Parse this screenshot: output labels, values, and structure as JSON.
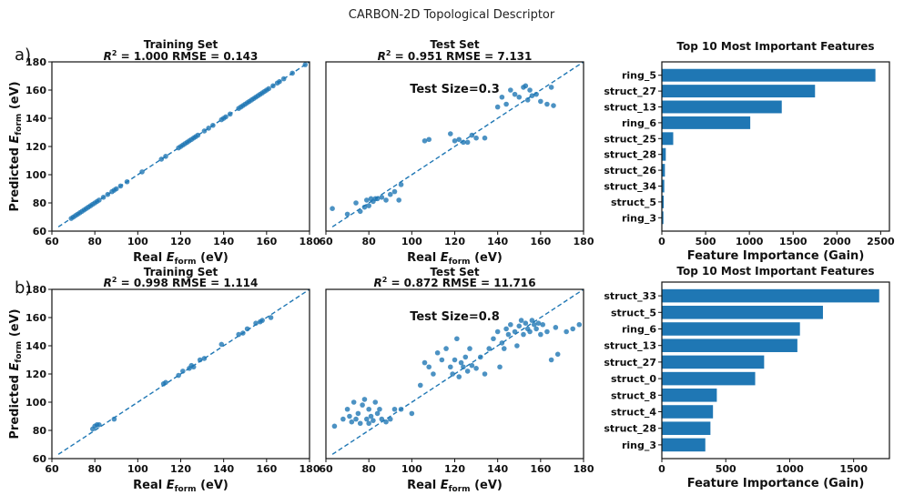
{
  "figure": {
    "title": "CARBON-2D Topological Descriptor",
    "row_labels": [
      "a)",
      "b)"
    ],
    "colors": {
      "marker": "#1f77b4",
      "bar": "#1f77b4",
      "axis": "#111111"
    }
  },
  "chart_data": [
    {
      "type": "scatter",
      "title": "Training Set",
      "r2": "1.000",
      "rmse": "0.143",
      "annotation": "",
      "xlabel_main": "Real ",
      "ylabel_main": "Predicted ",
      "symbol": "E",
      "subscript": "form",
      "unit": " (eV)",
      "xlim": [
        60,
        180
      ],
      "ylim": [
        60,
        180
      ],
      "xticks": [
        60,
        80,
        100,
        120,
        140,
        160,
        180
      ],
      "yticks": [
        60,
        80,
        100,
        120,
        140,
        160,
        180
      ],
      "ideal_line": [
        [
          63,
          63
        ],
        [
          180,
          180
        ]
      ],
      "points": [
        [
          69,
          69
        ],
        [
          70,
          70
        ],
        [
          71,
          71
        ],
        [
          72,
          72
        ],
        [
          73,
          73
        ],
        [
          74,
          74
        ],
        [
          75,
          75
        ],
        [
          76,
          76
        ],
        [
          77,
          77
        ],
        [
          78,
          78
        ],
        [
          79,
          79
        ],
        [
          80,
          80
        ],
        [
          81,
          81
        ],
        [
          82,
          82
        ],
        [
          84,
          84
        ],
        [
          86,
          86
        ],
        [
          88,
          88
        ],
        [
          89,
          89
        ],
        [
          90,
          90
        ],
        [
          92,
          92
        ],
        [
          95,
          95
        ],
        [
          102,
          102
        ],
        [
          111,
          111
        ],
        [
          113,
          113
        ],
        [
          119,
          119
        ],
        [
          120,
          120
        ],
        [
          121,
          121
        ],
        [
          122,
          122
        ],
        [
          123,
          123
        ],
        [
          124,
          124
        ],
        [
          125,
          125
        ],
        [
          126,
          126
        ],
        [
          127,
          127
        ],
        [
          128,
          128
        ],
        [
          131,
          131
        ],
        [
          133,
          133
        ],
        [
          135,
          135
        ],
        [
          139,
          139
        ],
        [
          140,
          140
        ],
        [
          141,
          141
        ],
        [
          143,
          143
        ],
        [
          147,
          147
        ],
        [
          148,
          148
        ],
        [
          149,
          149
        ],
        [
          150,
          150
        ],
        [
          151,
          151
        ],
        [
          152,
          152
        ],
        [
          153,
          153
        ],
        [
          154,
          154
        ],
        [
          155,
          155
        ],
        [
          156,
          156
        ],
        [
          157,
          157
        ],
        [
          158,
          158
        ],
        [
          159,
          159
        ],
        [
          160,
          160
        ],
        [
          161,
          161
        ],
        [
          163,
          163
        ],
        [
          165,
          165
        ],
        [
          166,
          166
        ],
        [
          168,
          168
        ],
        [
          172,
          172
        ],
        [
          178,
          178
        ]
      ]
    },
    {
      "type": "scatter",
      "title": "Test Set",
      "r2": "0.951",
      "rmse": "7.131",
      "annotation": "Test Size=0.3",
      "xlabel_main": "Real ",
      "ylabel_main": "",
      "symbol": "E",
      "subscript": "form",
      "unit": " (eV)",
      "xlim": [
        60,
        180
      ],
      "ylim": [
        60,
        180
      ],
      "xticks": [
        60,
        80,
        100,
        120,
        140,
        160,
        180
      ],
      "yticks": [],
      "ideal_line": [
        [
          63,
          63
        ],
        [
          180,
          180
        ]
      ],
      "points": [
        [
          63,
          76
        ],
        [
          70,
          72
        ],
        [
          74,
          80
        ],
        [
          76,
          74
        ],
        [
          78,
          77
        ],
        [
          79,
          82
        ],
        [
          80,
          78
        ],
        [
          81,
          83
        ],
        [
          82,
          81
        ],
        [
          83,
          83
        ],
        [
          84,
          83
        ],
        [
          86,
          84
        ],
        [
          88,
          82
        ],
        [
          90,
          86
        ],
        [
          92,
          88
        ],
        [
          94,
          82
        ],
        [
          95,
          93
        ],
        [
          106,
          124
        ],
        [
          108,
          125
        ],
        [
          118,
          129
        ],
        [
          120,
          124
        ],
        [
          122,
          125
        ],
        [
          124,
          123
        ],
        [
          126,
          123
        ],
        [
          128,
          128
        ],
        [
          130,
          126
        ],
        [
          134,
          126
        ],
        [
          140,
          148
        ],
        [
          142,
          155
        ],
        [
          144,
          150
        ],
        [
          146,
          160
        ],
        [
          148,
          157
        ],
        [
          150,
          155
        ],
        [
          152,
          162
        ],
        [
          153,
          163
        ],
        [
          154,
          153
        ],
        [
          155,
          160
        ],
        [
          156,
          156
        ],
        [
          158,
          157
        ],
        [
          160,
          152
        ],
        [
          163,
          150
        ],
        [
          165,
          162
        ],
        [
          166,
          149
        ]
      ]
    },
    {
      "type": "bar",
      "orientation": "horizontal",
      "title": "Top 10 Most Important Features",
      "xlabel": "Feature Importance (Gain)",
      "categories": [
        "ring_5",
        "struct_27",
        "struct_13",
        "ring_6",
        "struct_25",
        "struct_28",
        "struct_26",
        "struct_34",
        "struct_5",
        "ring_3"
      ],
      "values": [
        2440,
        1750,
        1370,
        1010,
        130,
        45,
        35,
        28,
        22,
        18
      ],
      "xlim": [
        0,
        2600
      ],
      "xticks": [
        0,
        500,
        1000,
        1500,
        2000,
        2500
      ]
    },
    {
      "type": "scatter",
      "title": "Training Set",
      "r2": "0.998",
      "rmse": "1.114",
      "annotation": "",
      "xlabel_main": "Real ",
      "ylabel_main": "Predicted ",
      "symbol": "E",
      "subscript": "form",
      "unit": " (eV)",
      "xlim": [
        60,
        180
      ],
      "ylim": [
        60,
        180
      ],
      "xticks": [
        60,
        80,
        100,
        120,
        140,
        160,
        180
      ],
      "yticks": [
        60,
        80,
        100,
        120,
        140,
        160,
        180
      ],
      "ideal_line": [
        [
          63,
          63
        ],
        [
          180,
          180
        ]
      ],
      "points": [
        [
          79,
          81
        ],
        [
          80,
          83
        ],
        [
          81,
          84
        ],
        [
          82,
          84
        ],
        [
          89,
          88
        ],
        [
          112,
          113
        ],
        [
          113,
          114
        ],
        [
          119,
          119
        ],
        [
          121,
          122
        ],
        [
          124,
          124
        ],
        [
          125,
          126
        ],
        [
          126,
          125
        ],
        [
          129,
          130
        ],
        [
          131,
          131
        ],
        [
          139,
          141
        ],
        [
          147,
          148
        ],
        [
          149,
          149
        ],
        [
          151,
          152
        ],
        [
          155,
          156
        ],
        [
          157,
          157
        ],
        [
          158,
          158
        ],
        [
          162,
          160
        ]
      ]
    },
    {
      "type": "scatter",
      "title": "Test Set",
      "r2": "0.872",
      "rmse": "11.716",
      "annotation": "Test Size=0.8",
      "xlabel_main": "Real ",
      "ylabel_main": "",
      "symbol": "E",
      "subscript": "form",
      "unit": " (eV)",
      "xlim": [
        60,
        180
      ],
      "ylim": [
        60,
        180
      ],
      "xticks": [
        60,
        80,
        100,
        120,
        140,
        160,
        180
      ],
      "yticks": [],
      "ideal_line": [
        [
          63,
          63
        ],
        [
          180,
          180
        ]
      ],
      "points": [
        [
          64,
          83
        ],
        [
          68,
          88
        ],
        [
          70,
          95
        ],
        [
          71,
          90
        ],
        [
          72,
          86
        ],
        [
          73,
          100
        ],
        [
          74,
          88
        ],
        [
          75,
          92
        ],
        [
          76,
          85
        ],
        [
          77,
          98
        ],
        [
          78,
          102
        ],
        [
          79,
          88
        ],
        [
          80,
          85
        ],
        [
          80,
          95
        ],
        [
          81,
          90
        ],
        [
          82,
          87
        ],
        [
          83,
          100
        ],
        [
          84,
          92
        ],
        [
          85,
          95
        ],
        [
          86,
          88
        ],
        [
          88,
          86
        ],
        [
          90,
          88
        ],
        [
          92,
          95
        ],
        [
          95,
          95
        ],
        [
          100,
          92
        ],
        [
          104,
          112
        ],
        [
          106,
          128
        ],
        [
          108,
          125
        ],
        [
          110,
          120
        ],
        [
          112,
          135
        ],
        [
          114,
          130
        ],
        [
          116,
          138
        ],
        [
          118,
          125
        ],
        [
          119,
          120
        ],
        [
          120,
          130
        ],
        [
          121,
          145
        ],
        [
          122,
          118
        ],
        [
          123,
          128
        ],
        [
          124,
          125
        ],
        [
          125,
          132
        ],
        [
          126,
          122
        ],
        [
          127,
          138
        ],
        [
          128,
          126
        ],
        [
          130,
          124
        ],
        [
          132,
          132
        ],
        [
          134,
          120
        ],
        [
          136,
          138
        ],
        [
          138,
          145
        ],
        [
          140,
          150
        ],
        [
          141,
          125
        ],
        [
          142,
          142
        ],
        [
          143,
          138
        ],
        [
          144,
          152
        ],
        [
          145,
          148
        ],
        [
          146,
          155
        ],
        [
          148,
          150
        ],
        [
          149,
          140
        ],
        [
          150,
          154
        ],
        [
          151,
          158
        ],
        [
          152,
          148
        ],
        [
          153,
          156
        ],
        [
          154,
          152
        ],
        [
          155,
          150
        ],
        [
          156,
          158
        ],
        [
          157,
          155
        ],
        [
          158,
          152
        ],
        [
          159,
          156
        ],
        [
          160,
          148
        ],
        [
          161,
          155
        ],
        [
          163,
          150
        ],
        [
          165,
          130
        ],
        [
          167,
          153
        ],
        [
          168,
          134
        ],
        [
          172,
          150
        ],
        [
          175,
          152
        ],
        [
          178,
          155
        ]
      ]
    },
    {
      "type": "bar",
      "orientation": "horizontal",
      "title": "Top 10 Most Important Features",
      "xlabel": "Feature Importance (Gain)",
      "categories": [
        "struct_33",
        "struct_5",
        "ring_6",
        "struct_13",
        "struct_27",
        "struct_0",
        "struct_8",
        "struct_4",
        "struct_28",
        "ring_3"
      ],
      "values": [
        1700,
        1260,
        1080,
        1060,
        800,
        730,
        430,
        400,
        380,
        340
      ],
      "xlim": [
        0,
        1780
      ],
      "xticks": [
        0,
        500,
        1000,
        1500
      ]
    }
  ]
}
